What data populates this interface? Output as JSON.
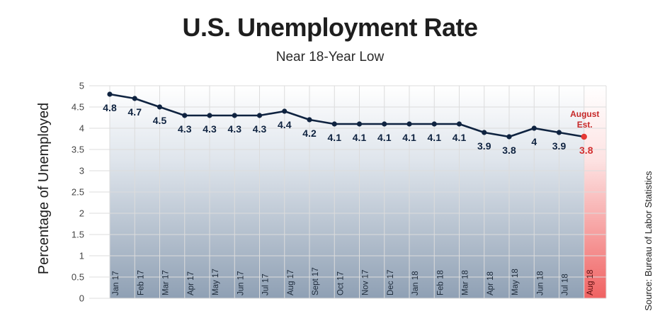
{
  "chart_data": {
    "type": "line",
    "title": "U.S. Unemployment Rate",
    "subtitle": "Near 18-Year Low",
    "ylabel": "Percentage of Unemployed",
    "xlabel": "",
    "source": "Source: Bureau of Labor Statistics",
    "ylim": [
      0,
      5
    ],
    "yticks": [
      "0",
      "0.5",
      "1",
      "1.5",
      "2",
      "2.5",
      "3",
      "3.5",
      "4",
      "4.5",
      "5"
    ],
    "grid": true,
    "categories": [
      "Jan 17",
      "Feb 17",
      "Mar 17",
      "Apr 17",
      "May 17",
      "Jun 17",
      "Jul 17",
      "Aug 17",
      "Sept 17",
      "Oct 17",
      "Nov 17",
      "Dec 17",
      "Jan 18",
      "Feb 18",
      "Mar 18",
      "Apr 18",
      "May 18",
      "Jun 18",
      "Jul 18",
      "Aug 18"
    ],
    "series": [
      {
        "values": [
          4.8,
          4.7,
          4.5,
          4.3,
          4.3,
          4.3,
          4.3,
          4.4,
          4.2,
          4.1,
          4.1,
          4.1,
          4.1,
          4.1,
          4.1,
          3.9,
          3.8,
          4.0,
          3.9,
          3.8
        ],
        "labels": [
          "4.8",
          "4.7",
          "4.5",
          "4.3",
          "4.3",
          "4.3",
          "4.3",
          "4.4",
          "4.2",
          "4.1",
          "4.1",
          "4.1",
          "4.1",
          "4.1",
          "4.1",
          "3.9",
          "3.8",
          "4",
          "3.9",
          "3.8"
        ]
      }
    ],
    "estimate_note": [
      "August",
      "Est."
    ],
    "colors": {
      "line": "#0f2340",
      "marker": "#0f2340",
      "estimate": "#e53935",
      "band_top": "#ffffff",
      "band_bottom": "#8fa0b4",
      "grid": "#dcdcdc"
    }
  }
}
